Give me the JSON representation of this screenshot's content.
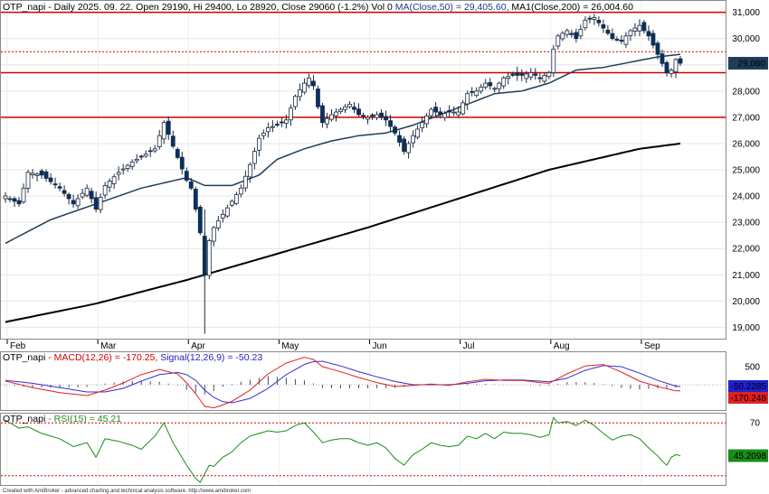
{
  "chart_data": [
    {
      "type": "candlestick",
      "header": {
        "symbol": "OTP_napi",
        "text": " - Daily 2025. 09. 22. Open 29190, Hi 29400, Lo 28920, Close 29060 (-1.2%) Vol 0",
        "ma50": " MA(Close,50) = 29,405.60,",
        "ma200": " MA1(Close,200) = 26,004.60"
      },
      "y_ticks": [
        "31,000",
        "30,000",
        "29,000",
        "28,000",
        "27,000",
        "26,000",
        "25,000",
        "24,000",
        "23,000",
        "22,000",
        "21,000",
        "20,000",
        "19,000"
      ],
      "y_tick_values": [
        31000,
        30000,
        29000,
        28000,
        27000,
        26000,
        25000,
        24000,
        23000,
        22000,
        21000,
        20000,
        19000
      ],
      "ylim": [
        18600,
        31400
      ],
      "x_ticks": [
        {
          "label": "Feb",
          "index": 0
        },
        {
          "label": "Mar",
          "index": 20
        },
        {
          "label": "Apr",
          "index": 40
        },
        {
          "label": "May",
          "index": 60
        },
        {
          "label": "Jun",
          "index": 80
        },
        {
          "label": "Jul",
          "index": 100
        },
        {
          "label": "Aug",
          "index": 120
        },
        {
          "label": "Sep",
          "index": 140
        }
      ],
      "last_price_label": "29,060",
      "last_price": 29060,
      "horizontal_lines": [
        31000,
        28700,
        27000
      ],
      "dotted_line": 29500,
      "candles_desc": "approximate daily OHLC keypoints (index, close)",
      "close_path": [
        [
          0,
          24000
        ],
        [
          3,
          23700
        ],
        [
          5,
          24900
        ],
        [
          8,
          24800
        ],
        [
          12,
          24300
        ],
        [
          15,
          23700
        ],
        [
          18,
          24300
        ],
        [
          20,
          23500
        ],
        [
          22,
          24400
        ],
        [
          25,
          24900
        ],
        [
          28,
          25300
        ],
        [
          30,
          25500
        ],
        [
          33,
          25800
        ],
        [
          35,
          26800
        ],
        [
          37,
          25900
        ],
        [
          40,
          24600
        ],
        [
          41,
          24300
        ],
        [
          42,
          23500
        ],
        [
          43,
          22600
        ],
        [
          44,
          21000
        ],
        [
          45,
          22300
        ],
        [
          46,
          22800
        ],
        [
          48,
          23300
        ],
        [
          50,
          23800
        ],
        [
          52,
          24300
        ],
        [
          54,
          25200
        ],
        [
          56,
          26200
        ],
        [
          58,
          26600
        ],
        [
          60,
          26700
        ],
        [
          62,
          26900
        ],
        [
          64,
          27800
        ],
        [
          66,
          28300
        ],
        [
          67,
          28500
        ],
        [
          68,
          28200
        ],
        [
          69,
          27400
        ],
        [
          70,
          26800
        ],
        [
          72,
          27100
        ],
        [
          74,
          27300
        ],
        [
          76,
          27500
        ],
        [
          78,
          27100
        ],
        [
          80,
          27000
        ],
        [
          82,
          27100
        ],
        [
          84,
          26900
        ],
        [
          86,
          26400
        ],
        [
          88,
          25700
        ],
        [
          90,
          26300
        ],
        [
          92,
          26800
        ],
        [
          94,
          27300
        ],
        [
          96,
          27100
        ],
        [
          98,
          27200
        ],
        [
          100,
          27200
        ],
        [
          102,
          27900
        ],
        [
          104,
          28000
        ],
        [
          106,
          28300
        ],
        [
          108,
          28100
        ],
        [
          110,
          28500
        ],
        [
          112,
          28600
        ],
        [
          114,
          28600
        ],
        [
          116,
          28700
        ],
        [
          118,
          28500
        ],
        [
          120,
          28700
        ],
        [
          121,
          29600
        ],
        [
          122,
          30100
        ],
        [
          124,
          30300
        ],
        [
          126,
          30000
        ],
        [
          128,
          30700
        ],
        [
          130,
          30800
        ],
        [
          132,
          30400
        ],
        [
          134,
          30000
        ],
        [
          136,
          29900
        ],
        [
          138,
          30300
        ],
        [
          140,
          30500
        ],
        [
          142,
          30100
        ],
        [
          144,
          29400
        ],
        [
          146,
          28700
        ],
        [
          147,
          28800
        ],
        [
          148,
          29200
        ],
        [
          149,
          29060
        ]
      ],
      "ma50_path": [
        [
          0,
          22200
        ],
        [
          10,
          23100
        ],
        [
          20,
          23700
        ],
        [
          30,
          24300
        ],
        [
          40,
          24700
        ],
        [
          44,
          24400
        ],
        [
          50,
          24400
        ],
        [
          56,
          24800
        ],
        [
          60,
          25400
        ],
        [
          66,
          25800
        ],
        [
          72,
          26100
        ],
        [
          78,
          26300
        ],
        [
          84,
          26400
        ],
        [
          90,
          26700
        ],
        [
          96,
          27100
        ],
        [
          102,
          27500
        ],
        [
          108,
          27900
        ],
        [
          114,
          28000
        ],
        [
          120,
          28300
        ],
        [
          126,
          28800
        ],
        [
          132,
          28900
        ],
        [
          138,
          29100
        ],
        [
          144,
          29300
        ],
        [
          149,
          29400
        ]
      ],
      "ma200_path": [
        [
          0,
          19200
        ],
        [
          20,
          19900
        ],
        [
          40,
          20800
        ],
        [
          60,
          21800
        ],
        [
          80,
          22800
        ],
        [
          100,
          23900
        ],
        [
          120,
          25000
        ],
        [
          140,
          25800
        ],
        [
          149,
          26000
        ]
      ]
    },
    {
      "type": "line",
      "header": {
        "symbol": "OTP_napi",
        "macd_label": " - MACD(12,26) = -170.25,",
        "signal_label": " Signal(12,26,9) = -50.23"
      },
      "y_ticks": [
        "500"
      ],
      "y_tick_values": [
        500
      ],
      "ylim": [
        -700,
        900
      ],
      "signal_box": "-50.2285",
      "macd_box": "-170.248",
      "series": [
        {
          "name": "MACD(12,26)",
          "values_path": [
            [
              0,
              100
            ],
            [
              6,
              -80
            ],
            [
              12,
              -220
            ],
            [
              18,
              -300
            ],
            [
              22,
              -150
            ],
            [
              26,
              50
            ],
            [
              30,
              280
            ],
            [
              34,
              420
            ],
            [
              38,
              300
            ],
            [
              40,
              50
            ],
            [
              42,
              -250
            ],
            [
              44,
              -600
            ],
            [
              46,
              -640
            ],
            [
              48,
              -560
            ],
            [
              50,
              -460
            ],
            [
              54,
              -150
            ],
            [
              58,
              300
            ],
            [
              62,
              600
            ],
            [
              66,
              760
            ],
            [
              68,
              700
            ],
            [
              70,
              500
            ],
            [
              74,
              360
            ],
            [
              78,
              200
            ],
            [
              82,
              60
            ],
            [
              86,
              -50
            ],
            [
              90,
              -20
            ],
            [
              94,
              20
            ],
            [
              98,
              -20
            ],
            [
              102,
              80
            ],
            [
              106,
              150
            ],
            [
              110,
              120
            ],
            [
              114,
              120
            ],
            [
              118,
              60
            ],
            [
              120,
              40
            ],
            [
              124,
              300
            ],
            [
              128,
              520
            ],
            [
              132,
              560
            ],
            [
              136,
              350
            ],
            [
              140,
              100
            ],
            [
              144,
              -50
            ],
            [
              148,
              -170
            ],
            [
              149,
              -170
            ]
          ]
        },
        {
          "name": "Signal(12,26,9)",
          "values_path": [
            [
              0,
              120
            ],
            [
              6,
              40
            ],
            [
              12,
              -80
            ],
            [
              18,
              -200
            ],
            [
              22,
              -200
            ],
            [
              26,
              -100
            ],
            [
              30,
              100
            ],
            [
              34,
              280
            ],
            [
              38,
              340
            ],
            [
              40,
              280
            ],
            [
              42,
              120
            ],
            [
              44,
              -150
            ],
            [
              46,
              -350
            ],
            [
              48,
              -470
            ],
            [
              50,
              -500
            ],
            [
              54,
              -380
            ],
            [
              58,
              -100
            ],
            [
              62,
              280
            ],
            [
              66,
              560
            ],
            [
              68,
              640
            ],
            [
              70,
              650
            ],
            [
              74,
              520
            ],
            [
              78,
              360
            ],
            [
              82,
              220
            ],
            [
              86,
              90
            ],
            [
              90,
              0
            ],
            [
              94,
              0
            ],
            [
              98,
              0
            ],
            [
              102,
              40
            ],
            [
              106,
              110
            ],
            [
              110,
              130
            ],
            [
              114,
              130
            ],
            [
              118,
              100
            ],
            [
              120,
              80
            ],
            [
              124,
              180
            ],
            [
              128,
              400
            ],
            [
              132,
              530
            ],
            [
              136,
              500
            ],
            [
              140,
              320
            ],
            [
              144,
              120
            ],
            [
              148,
              -40
            ],
            [
              149,
              -50
            ]
          ]
        }
      ]
    },
    {
      "type": "line",
      "header": {
        "symbol": "OTP_napi",
        "rsi_label": " - RSI(15) = 45.21"
      },
      "y_ticks": [
        "70"
      ],
      "y_tick_values": [
        70
      ],
      "ylim": [
        23,
        77
      ],
      "rsi_box": "45.2098",
      "series": [
        {
          "name": "RSI(15)",
          "values_path": [
            [
              0,
              72
            ],
            [
              3,
              66
            ],
            [
              5,
              67
            ],
            [
              8,
              62
            ],
            [
              12,
              58
            ],
            [
              15,
              52
            ],
            [
              18,
              55
            ],
            [
              20,
              44
            ],
            [
              22,
              58
            ],
            [
              25,
              56
            ],
            [
              28,
              53
            ],
            [
              30,
              50
            ],
            [
              33,
              60
            ],
            [
              35,
              70
            ],
            [
              37,
              55
            ],
            [
              40,
              38
            ],
            [
              42,
              28
            ],
            [
              43,
              25
            ],
            [
              45,
              38
            ],
            [
              46,
              37
            ],
            [
              48,
              44
            ],
            [
              50,
              48
            ],
            [
              52,
              55
            ],
            [
              54,
              60
            ],
            [
              56,
              62
            ],
            [
              58,
              64
            ],
            [
              60,
              63
            ],
            [
              62,
              64
            ],
            [
              64,
              68
            ],
            [
              66,
              70
            ],
            [
              68,
              63
            ],
            [
              70,
              55
            ],
            [
              72,
              57
            ],
            [
              74,
              58
            ],
            [
              76,
              58
            ],
            [
              78,
              55
            ],
            [
              80,
              53
            ],
            [
              82,
              55
            ],
            [
              84,
              51
            ],
            [
              86,
              43
            ],
            [
              88,
              38
            ],
            [
              90,
              46
            ],
            [
              92,
              50
            ],
            [
              94,
              55
            ],
            [
              96,
              53
            ],
            [
              98,
              52
            ],
            [
              100,
              53
            ],
            [
              102,
              60
            ],
            [
              104,
              58
            ],
            [
              106,
              62
            ],
            [
              108,
              58
            ],
            [
              110,
              63
            ],
            [
              112,
              62
            ],
            [
              114,
              62
            ],
            [
              116,
              61
            ],
            [
              118,
              59
            ],
            [
              120,
              61
            ],
            [
              121,
              74
            ],
            [
              122,
              70
            ],
            [
              124,
              71
            ],
            [
              126,
              68
            ],
            [
              128,
              72
            ],
            [
              130,
              68
            ],
            [
              132,
              62
            ],
            [
              134,
              57
            ],
            [
              136,
              60
            ],
            [
              138,
              61
            ],
            [
              140,
              58
            ],
            [
              142,
              51
            ],
            [
              144,
              45
            ],
            [
              145,
              41
            ],
            [
              146,
              38
            ],
            [
              147,
              44
            ],
            [
              148,
              46
            ],
            [
              149,
              45.2
            ]
          ]
        }
      ]
    }
  ],
  "footer": "Created with AmiBroker - advanced charting and technical analysis software. http://www.amibroker.com",
  "colors": {
    "candle_up": "#ffffff",
    "candle_down": "#003366",
    "ma50": "#1f3e5a",
    "ma200": "#000000",
    "hline": "#d00000",
    "dotted": "#d00000",
    "macd": "#e02020",
    "signal": "#3030d0",
    "rsi": "#1a8c1a",
    "hist": "#3d4e66"
  }
}
